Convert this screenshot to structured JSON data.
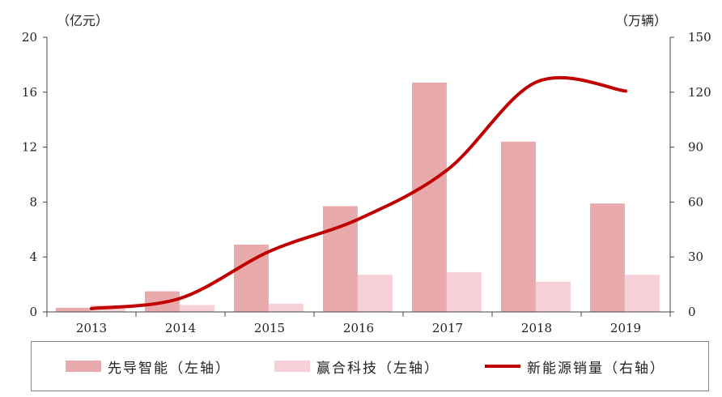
{
  "chart_data": {
    "type": "bar",
    "categories": [
      "2013",
      "2014",
      "2015",
      "2016",
      "2017",
      "2018",
      "2019"
    ],
    "series": [
      {
        "name": "先导智能（左轴）",
        "type": "bar",
        "axis": "left",
        "color": "#e8aaaa",
        "values": [
          0.3,
          1.5,
          4.9,
          7.7,
          16.7,
          12.4,
          7.9
        ]
      },
      {
        "name": "赢合科技（左轴）",
        "type": "bar",
        "axis": "left",
        "color": "#f7cfd6",
        "values": [
          0.5,
          0.5,
          0.6,
          2.7,
          2.9,
          2.2,
          2.7
        ]
      },
      {
        "name": "新能源销量（右轴）",
        "type": "line",
        "axis": "right",
        "color": "#c00000",
        "values": [
          1.8,
          7.5,
          33.1,
          50.7,
          77.7,
          125.6,
          120.6
        ]
      }
    ],
    "left_axis": {
      "unit": "（亿元）",
      "ticks": [
        "0",
        "4",
        "8",
        "12",
        "16",
        "20"
      ],
      "ylim": [
        0,
        20
      ]
    },
    "right_axis": {
      "unit": "（万辆）",
      "ticks": [
        "0",
        "30",
        "60",
        "90",
        "120",
        "150"
      ],
      "ylim": [
        0,
        150
      ]
    },
    "grid": false,
    "legend_position": "bottom"
  }
}
